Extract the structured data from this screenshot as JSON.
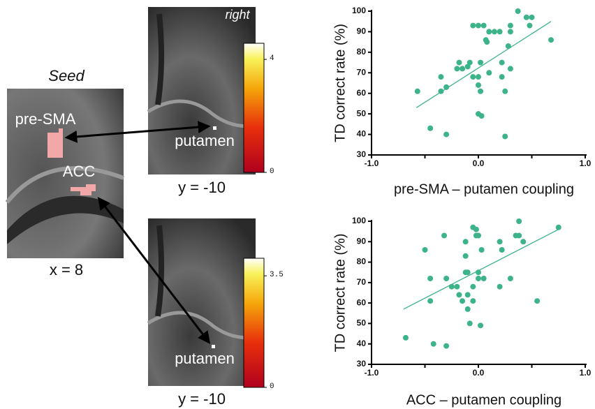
{
  "figure": {
    "seed_title": "Seed",
    "roi_labels": [
      "pre-SMA",
      "ACC"
    ],
    "seed_coord": "x = 8",
    "panels": [
      {
        "orientation": "right",
        "region": "putamen",
        "coord": "y = -10",
        "clim": [
          0,
          4.57
        ],
        "colorbar_ticks": [
          4,
          0
        ]
      },
      {
        "region": "putamen",
        "coord": "y = -10",
        "clim": [
          0,
          4.05
        ],
        "colorbar_ticks": [
          3.5,
          0
        ]
      }
    ]
  },
  "chart_data": [
    {
      "type": "scatter",
      "xlabel": "pre-SMA – putamen coupling",
      "ylabel": "TD correct rate (%)",
      "color": "#3db38a",
      "x": [
        -0.57,
        -0.45,
        -0.35,
        -0.35,
        -0.3,
        -0.3,
        -0.2,
        -0.18,
        -0.15,
        -0.1,
        -0.05,
        -0.05,
        0.0,
        0.02,
        0.0,
        0.05,
        0.07,
        0.08,
        0.1,
        0.0,
        0.02,
        0.0,
        0.03,
        0.1,
        0.2,
        0.22,
        0.22,
        0.25,
        0.25,
        0.3,
        0.3,
        0.3,
        0.28,
        0.37,
        0.45,
        0.5,
        0.48,
        0.68,
        0.15,
        -0.08
      ],
      "values": [
        61,
        43,
        61,
        68,
        63,
        40,
        72,
        75,
        72,
        73,
        68,
        93,
        93,
        75,
        68,
        93,
        86,
        85,
        90,
        64,
        61,
        50,
        49,
        70,
        90,
        75,
        68,
        39,
        61,
        90,
        93,
        72,
        83,
        100,
        97,
        97,
        93,
        86,
        90,
        75
      ],
      "trendline": {
        "x": [
          -0.58,
          0.68
        ],
        "values": [
          53,
          95
        ],
        "color": "#3db38a"
      },
      "xlim": [
        -1,
        1
      ],
      "ylim": [
        30,
        100
      ],
      "xticks": [
        {
          "value": -1,
          "label": "-1.0"
        },
        -0.5,
        {
          "value": 0,
          "label": "0.0"
        },
        0.5,
        {
          "value": 1,
          "label": "1.0"
        }
      ],
      "yticks": [
        30,
        40,
        50,
        60,
        70,
        80,
        90,
        100
      ]
    },
    {
      "type": "scatter",
      "xlabel": "ACC – putamen coupling",
      "ylabel": "TD correct rate (%)",
      "color": "#3db38a",
      "x": [
        -0.68,
        -0.5,
        -0.45,
        -0.45,
        -0.42,
        -0.32,
        -0.3,
        -0.3,
        -0.25,
        -0.2,
        -0.15,
        -0.12,
        -0.12,
        -0.12,
        -0.1,
        -0.08,
        -0.1,
        -0.05,
        -0.05,
        -0.05,
        -0.02,
        -0.02,
        0.0,
        0.0,
        0.02,
        0.03,
        0.05,
        0.2,
        0.2,
        0.22,
        0.3,
        0.35,
        0.38,
        0.38,
        0.42,
        0.55,
        0.75,
        -0.1,
        -0.18,
        0.0
      ],
      "values": [
        43,
        86,
        61,
        72,
        40,
        93,
        39,
        72,
        68,
        68,
        61,
        90,
        83,
        75,
        75,
        50,
        64,
        68,
        61,
        97,
        93,
        96,
        75,
        72,
        49,
        86,
        72,
        90,
        68,
        86,
        72,
        93,
        93,
        100,
        90,
        61,
        97,
        57,
        64,
        93
      ],
      "trendline": {
        "x": [
          -0.7,
          0.75
        ],
        "values": [
          57,
          96
        ],
        "color": "#3db38a"
      },
      "xlim": [
        -1,
        1
      ],
      "ylim": [
        30,
        100
      ],
      "xticks": [
        {
          "value": -1,
          "label": "-1.0"
        },
        -0.5,
        {
          "value": 0,
          "label": "0.0"
        },
        0.5,
        {
          "value": 1,
          "label": "1.0"
        }
      ],
      "yticks": [
        30,
        40,
        50,
        60,
        70,
        80,
        90,
        100
      ]
    }
  ]
}
